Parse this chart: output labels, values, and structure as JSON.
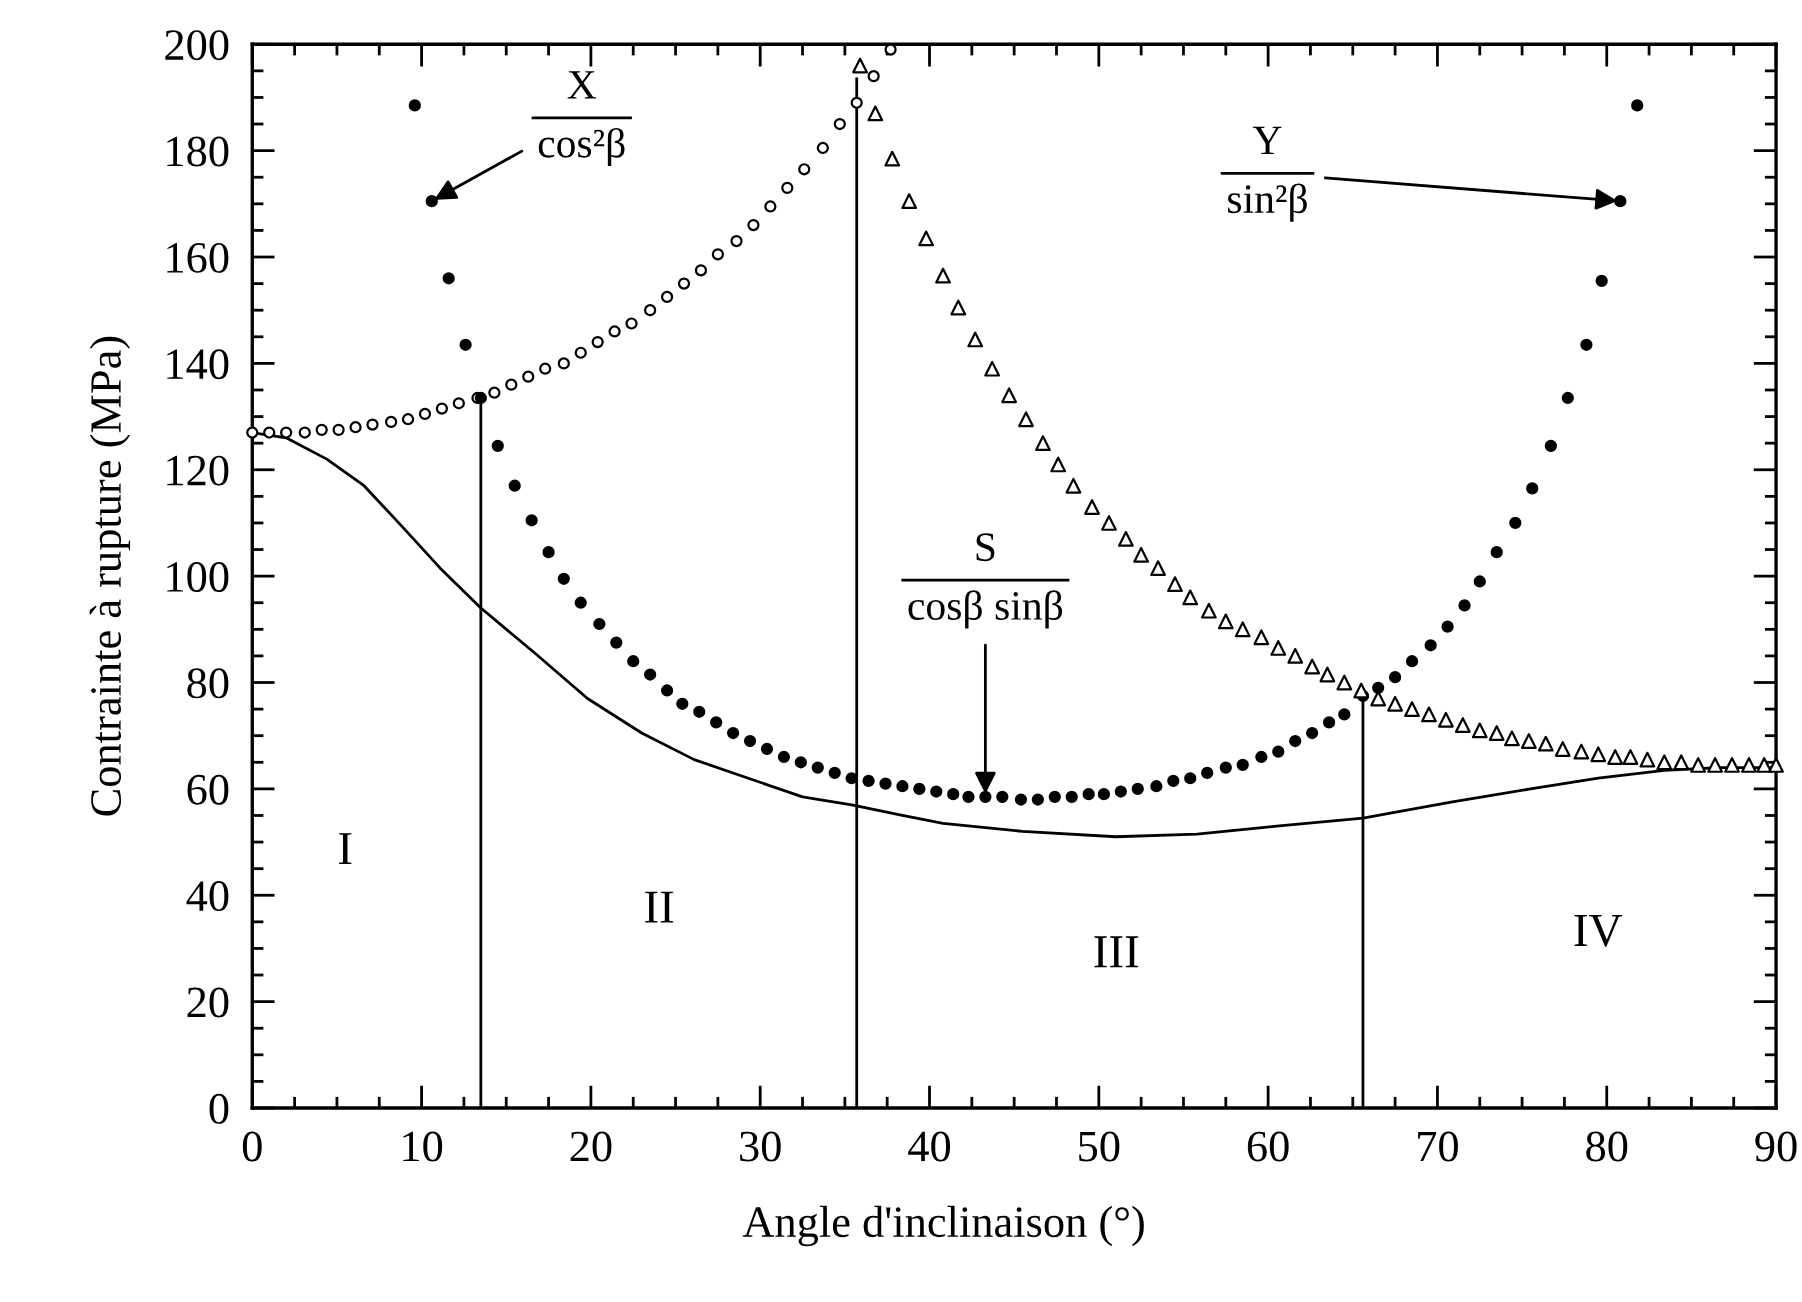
{
  "chart_data": {
    "type": "scatter",
    "xlabel": "Angle d'inclinaison (°)",
    "ylabel": "Contrainte à rupture (MPa)",
    "xlim": [
      0,
      90
    ],
    "ylim": [
      0,
      200
    ],
    "xticks": [
      0,
      10,
      20,
      30,
      40,
      50,
      60,
      70,
      80,
      90,
      {
        "value": 2.5,
        "label": null
      },
      {
        "value": 5,
        "label": null
      },
      {
        "value": 7.5,
        "label": null
      },
      {
        "value": 12.5,
        "label": null
      },
      {
        "value": 15,
        "label": null
      },
      {
        "value": 17.5,
        "label": null
      },
      {
        "value": 22.5,
        "label": null
      },
      {
        "value": 25,
        "label": null
      },
      {
        "value": 27.5,
        "label": null
      },
      {
        "value": 32.5,
        "label": null
      },
      {
        "value": 35,
        "label": null
      },
      {
        "value": 37.5,
        "label": null
      },
      {
        "value": 42.5,
        "label": null
      },
      {
        "value": 45,
        "label": null
      },
      {
        "value": 47.5,
        "label": null
      },
      {
        "value": 52.5,
        "label": null
      },
      {
        "value": 55,
        "label": null
      },
      {
        "value": 57.5,
        "label": null
      },
      {
        "value": 62.5,
        "label": null
      },
      {
        "value": 65,
        "label": null
      },
      {
        "value": 67.5,
        "label": null
      },
      {
        "value": 72.5,
        "label": null
      },
      {
        "value": 75,
        "label": null
      },
      {
        "value": 77.5,
        "label": null
      },
      {
        "value": 82.5,
        "label": null
      },
      {
        "value": 85,
        "label": null
      },
      {
        "value": 87.5,
        "label": null
      }
    ],
    "yticks": [
      0,
      20,
      40,
      60,
      80,
      100,
      120,
      140,
      160,
      180,
      200,
      {
        "value": 5,
        "label": null
      },
      {
        "value": 10,
        "label": null
      },
      {
        "value": 15,
        "label": null
      },
      {
        "value": 25,
        "label": null
      },
      {
        "value": 30,
        "label": null
      },
      {
        "value": 35,
        "label": null
      },
      {
        "value": 45,
        "label": null
      },
      {
        "value": 50,
        "label": null
      },
      {
        "value": 55,
        "label": null
      },
      {
        "value": 65,
        "label": null
      },
      {
        "value": 70,
        "label": null
      },
      {
        "value": 75,
        "label": null
      },
      {
        "value": 85,
        "label": null
      },
      {
        "value": 90,
        "label": null
      },
      {
        "value": 95,
        "label": null
      },
      {
        "value": 105,
        "label": null
      },
      {
        "value": 110,
        "label": null
      },
      {
        "value": 115,
        "label": null
      },
      {
        "value": 125,
        "label": null
      },
      {
        "value": 130,
        "label": null
      },
      {
        "value": 135,
        "label": null
      },
      {
        "value": 145,
        "label": null
      },
      {
        "value": 150,
        "label": null
      },
      {
        "value": 155,
        "label": null
      },
      {
        "value": 165,
        "label": null
      },
      {
        "value": 170,
        "label": null
      },
      {
        "value": 175,
        "label": null
      },
      {
        "value": 185,
        "label": null
      },
      {
        "value": 190,
        "label": null
      },
      {
        "value": 195,
        "label": null
      }
    ],
    "series": [
      {
        "marker": "circle",
        "color": "#000000",
        "x": [
          0,
          1,
          2,
          3.1,
          4.1,
          5.1,
          6.1,
          7.1,
          8.2,
          9.2,
          10.2,
          11.2,
          12.2,
          13.3,
          14.3,
          15.3,
          16.3,
          17.3,
          18.4,
          19.4,
          20.4,
          21.4,
          22.4,
          23.5,
          24.5,
          25.5,
          26.5,
          27.5,
          28.6,
          29.6,
          30.6,
          31.6,
          32.6,
          33.7,
          34.7,
          35.7,
          36.7,
          37.7
        ],
        "values": [
          127,
          127,
          127,
          127,
          127.5,
          127.5,
          128,
          128.5,
          129,
          129.5,
          130.5,
          131.5,
          132.5,
          133.5,
          134.5,
          136,
          137.5,
          139,
          140,
          142,
          144,
          146,
          147.5,
          150,
          152.5,
          155,
          157.5,
          160.5,
          163,
          166,
          169.5,
          173,
          176.5,
          180.5,
          185,
          189,
          194,
          199
        ]
      },
      {
        "marker": "circle",
        "color": "#000000",
        "x": [
          9.6,
          10.6,
          11.6,
          12.6,
          13.5,
          14.5,
          15.5,
          16.5,
          17.5,
          18.4,
          19.4,
          20.5,
          21.5,
          22.5,
          23.5,
          24.5,
          25.4,
          26.4,
          27.4,
          28.4,
          29.4,
          30.4,
          31.4,
          32.4,
          33.4,
          34.4,
          35.4,
          36.4,
          37.4,
          38.4,
          39.4,
          40.4,
          41.4,
          42.3,
          43.3,
          44.3,
          45.4,
          46.4,
          47.4,
          48.4,
          49.4,
          50.3,
          51.3,
          52.3,
          53.4,
          54.4,
          55.4,
          56.4,
          57.5,
          58.5,
          59.6,
          60.6,
          61.6,
          62.6,
          63.6,
          64.5,
          65.6,
          66.5,
          67.5,
          68.5,
          69.6,
          70.6,
          71.6,
          72.5,
          73.5,
          74.6,
          75.6,
          76.7,
          77.7,
          78.8,
          79.7,
          80.8,
          81.8
        ],
        "values": [
          188.5,
          170.5,
          156,
          143.5,
          133.5,
          124.5,
          117,
          110.5,
          104.5,
          99.5,
          95,
          91,
          87.5,
          84,
          81.5,
          78.5,
          76,
          74.5,
          72.5,
          70.5,
          69,
          67.5,
          66,
          65,
          64,
          63,
          62,
          61.5,
          61,
          60.5,
          60,
          59.5,
          59,
          58.5,
          58.5,
          58.5,
          58,
          58,
          58.5,
          58.5,
          59,
          59,
          59.5,
          60,
          60.5,
          61.5,
          62,
          63,
          64,
          64.5,
          66,
          67,
          69,
          70.5,
          72.5,
          74,
          77.5,
          79,
          81,
          84,
          87,
          90.5,
          94.5,
          99,
          104.5,
          110,
          116.5,
          124.5,
          133.5,
          143.5,
          155.5,
          170.5,
          188.5
        ]
      },
      {
        "marker": "triangle",
        "color": "#000000",
        "x": [
          35.9,
          36.8,
          37.8,
          38.8,
          39.8,
          40.8,
          41.7,
          42.7,
          43.7,
          44.7,
          45.7,
          46.7,
          47.6,
          48.5,
          49.6,
          50.6,
          51.6,
          52.5,
          53.5,
          54.5,
          55.4,
          56.5,
          57.5,
          58.5,
          59.6,
          60.6,
          61.6,
          62.6,
          63.5,
          64.5,
          65.5,
          66.5,
          67.5,
          68.5,
          69.5,
          70.5,
          71.5,
          72.5,
          73.5,
          74.4,
          75.4,
          76.4,
          77.4,
          78.5,
          79.5,
          80.5,
          81.4,
          82.4,
          83.4,
          84.4,
          85.4,
          86.4,
          87.4,
          88.4,
          89.3,
          90
        ],
        "values": [
          196,
          187,
          178.5,
          170.5,
          163.5,
          156.5,
          150.5,
          144.5,
          139,
          134,
          129.5,
          125,
          121,
          117,
          113,
          110,
          107,
          104,
          101.5,
          98.5,
          96,
          93.5,
          91.5,
          90,
          88.5,
          86.5,
          85,
          83,
          81.5,
          80,
          78.5,
          77,
          76,
          75,
          74,
          73,
          72,
          71,
          70.5,
          69.5,
          69,
          68.5,
          67.5,
          67,
          66.5,
          66,
          66,
          65.5,
          65,
          65,
          64.5,
          64.5,
          64.5,
          64.5,
          64.5,
          64.5
        ]
      },
      {
        "type": "line",
        "line_style": "solid",
        "color": "#000000",
        "x": [
          0,
          2,
          4.4,
          6.6,
          8.8,
          11.1,
          13.5,
          16.7,
          19.8,
          23,
          26.1,
          29.3,
          32.5,
          35.4,
          38.4,
          40.8,
          45.5,
          51,
          55.8,
          60.5,
          65.6,
          70.8,
          75.5,
          79.5,
          83.4,
          86.6,
          90
        ],
        "values": [
          127,
          126,
          122,
          117,
          109.5,
          101.5,
          94,
          85.5,
          77,
          70.5,
          65.5,
          62,
          58.5,
          57,
          55,
          53.5,
          52,
          51,
          51.5,
          53,
          54.5,
          57.5,
          60,
          62,
          63.5,
          64,
          64
        ]
      },
      {
        "type": "line",
        "line_style": "solid",
        "color": "#000000",
        "x": [
          13.5,
          13.5,
          null,
          35.7,
          35.7,
          null,
          65.6,
          65.6
        ],
        "values": [
          0,
          133.5,
          null,
          0,
          193.5,
          null,
          0,
          78
        ]
      }
    ],
    "annotations": [
      {
        "text": "X\ncos²β",
        "x": 10.6,
        "y": 170.5
      },
      {
        "text": "Y\nsin²β",
        "x": 80.8,
        "y": 170.5
      },
      {
        "text": "S\ncosβ sinβ",
        "x": 43.3,
        "y": 58.5
      },
      "I",
      "II",
      "III",
      "IV"
    ]
  }
}
